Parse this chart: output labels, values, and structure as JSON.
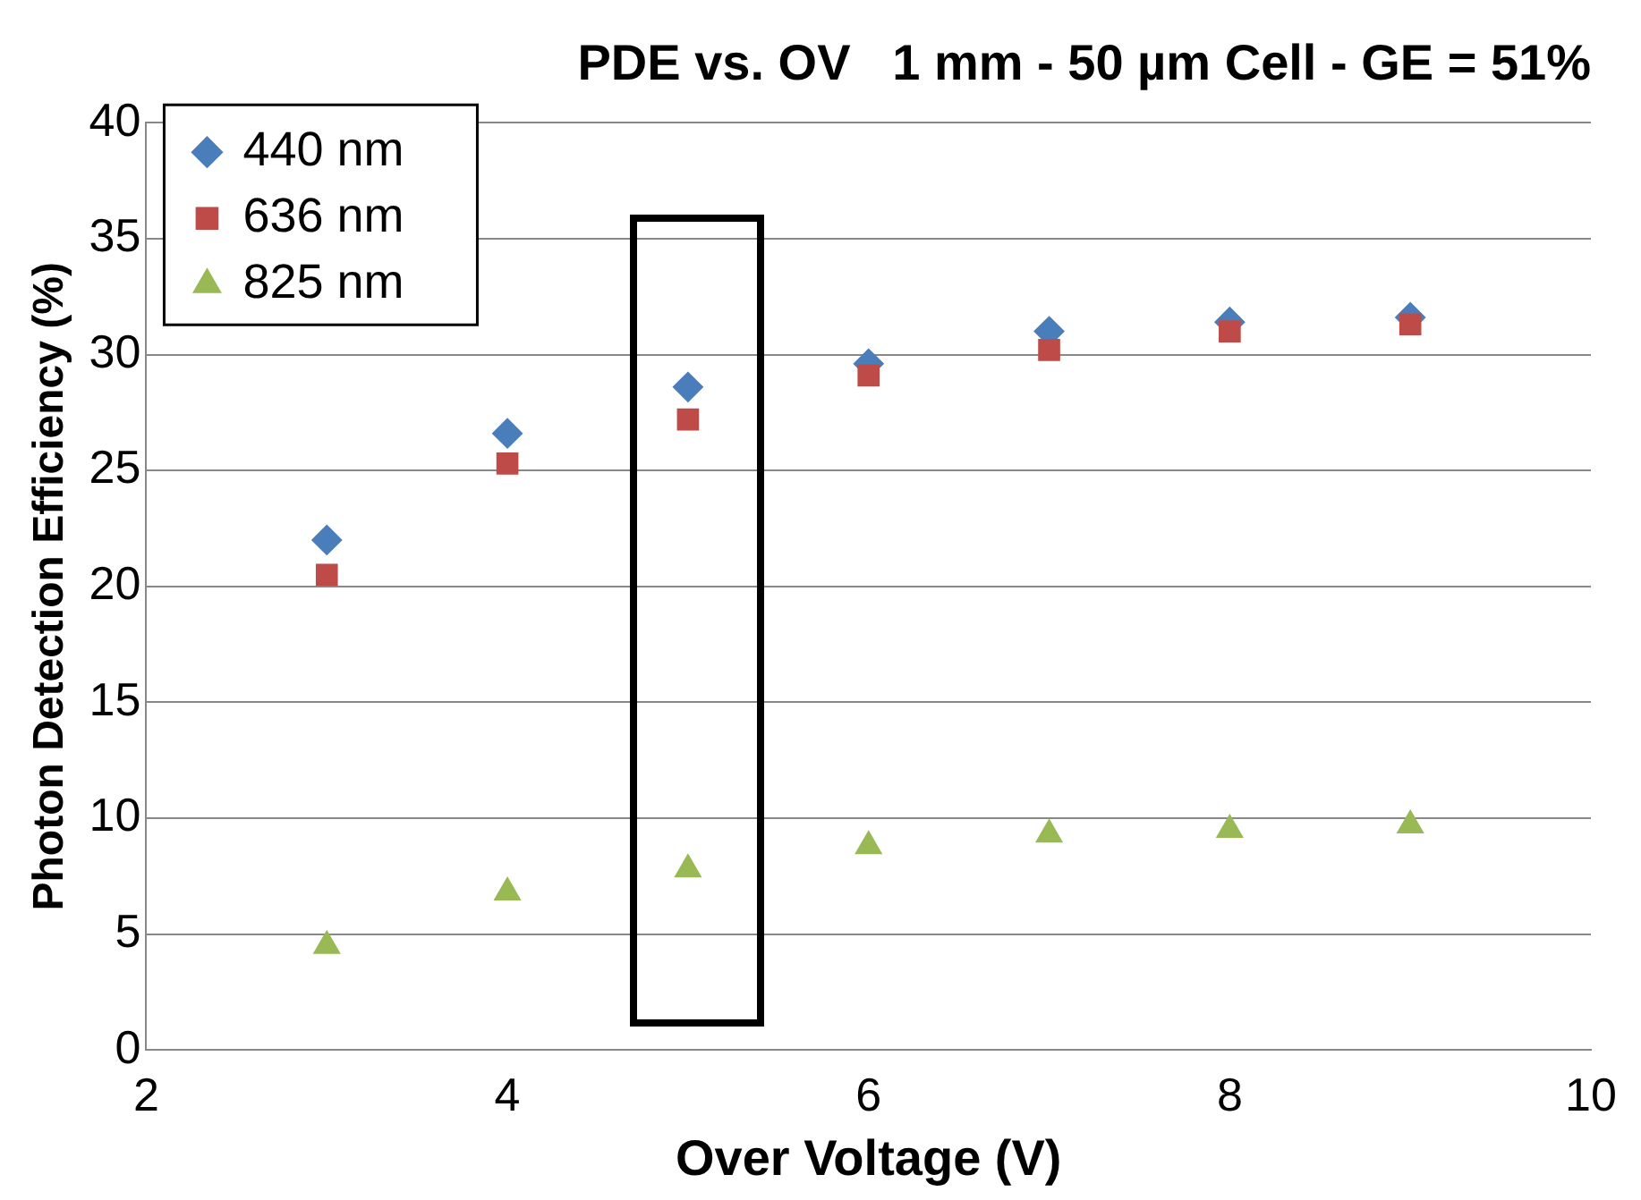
{
  "chart_data": {
    "type": "scatter",
    "title": "PDE vs. OV   1 mm - 50 µm Cell - GE = 51%",
    "xlabel": "Over Voltage (V)",
    "ylabel": "Photon Detection Efficiency (%)",
    "x": [
      3,
      4,
      5,
      6,
      7,
      8,
      9
    ],
    "series": [
      {
        "name": "440 nm",
        "color": "#4a7ebb",
        "marker": "diamond",
        "values": [
          22.0,
          26.6,
          28.6,
          29.6,
          31.0,
          31.4,
          31.6
        ]
      },
      {
        "name": "636 nm",
        "color": "#be4b48",
        "marker": "square",
        "values": [
          20.5,
          25.3,
          27.2,
          29.1,
          30.2,
          31.0,
          31.3
        ]
      },
      {
        "name": "825 nm",
        "color": "#98b954",
        "marker": "triangle",
        "values": [
          4.5,
          6.8,
          7.8,
          8.8,
          9.3,
          9.5,
          9.7
        ]
      }
    ],
    "xlim": [
      2,
      10
    ],
    "xticks": [
      2,
      4,
      6,
      8,
      10
    ],
    "ylim": [
      0,
      40
    ],
    "yticks": [
      0,
      5,
      10,
      15,
      20,
      25,
      30,
      35,
      40
    ],
    "grid": "y",
    "legend": "top left"
  }
}
